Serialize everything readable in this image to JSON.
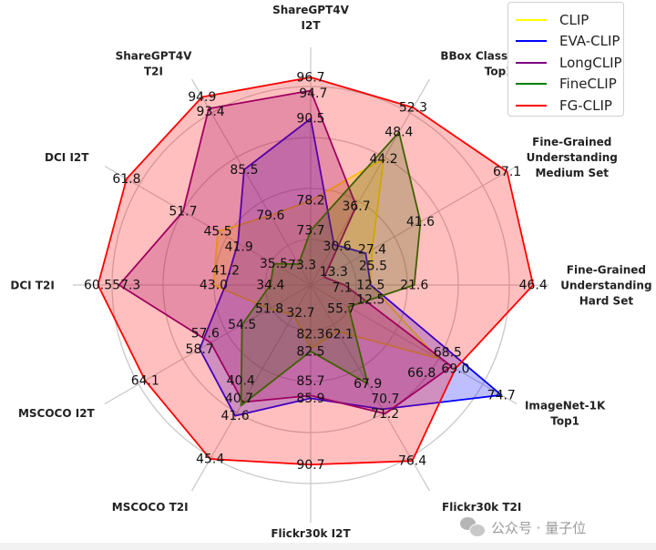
{
  "chart_data": {
    "type": "radar",
    "title": "",
    "axes": [
      {
        "label": [
          "ShareGPT4V",
          "I2T"
        ],
        "range": [
          65.5,
          101.2
        ]
      },
      {
        "label": [
          "BBox Classification",
          "Top1"
        ],
        "range": [
          24.2,
          56.8
        ]
      },
      {
        "label": [
          "Fine-Grained",
          "Understanding",
          "Medium Set"
        ],
        "range": [
          9.3,
          69.9
        ]
      },
      {
        "label": [
          "Fine-Grained",
          "Understanding",
          "Hard Set"
        ],
        "range": [
          0,
          49.6
        ]
      },
      {
        "label": [
          "ImageNet-1K",
          "Top1"
        ],
        "range": [
          51.0,
          76.6
        ]
      },
      {
        "label": [
          "Flickr30k  T2I"
        ],
        "range": [
          57.0,
          79.7
        ]
      },
      {
        "label": [
          "Flickr30k  I2T"
        ],
        "range": [
          77.7,
          94.9
        ]
      },
      {
        "label": [
          "MSCOCO  T2I"
        ],
        "range": [
          30.1,
          48.2
        ]
      },
      {
        "label": [
          "MSCOCO  I2T"
        ],
        "range": [
          47.7,
          68.1
        ]
      },
      {
        "label": [
          "DCI  T2I"
        ],
        "range": [
          28.3,
          64.3
        ]
      },
      {
        "label": [
          "DCI  I2T"
        ],
        "range": [
          28.9,
          65.7
        ]
      },
      {
        "label": [
          "ShareGPT4V",
          "T2I"
        ],
        "range": [
          70.6,
          97.2
        ]
      }
    ],
    "series": [
      {
        "name": "CLIP",
        "color": "#ffff00",
        "fill": "#ffff00",
        "values": [
          78.2,
          44.2,
          27.4,
          12.5,
          66.8,
          62.1,
          82.3,
          32.7,
          51.8,
          43.0,
          45.5,
          79.6
        ]
      },
      {
        "name": "EVA-CLIP",
        "color": "#0000ff",
        "fill": "#0000ff",
        "values": [
          90.5,
          30.6,
          25.5,
          12.5,
          74.7,
          70.7,
          85.9,
          41.6,
          58.7,
          41.2,
          41.9,
          85.5
        ]
      },
      {
        "name": "LongCLIP",
        "color": "#800080",
        "fill": "#800080",
        "values": [
          94.7,
          36.7,
          13.3,
          7.1,
          68.5,
          71.2,
          85.7,
          40.4,
          57.6,
          57.3,
          51.7,
          93.4
        ]
      },
      {
        "name": "FineCLIP",
        "color": "#008000",
        "fill": "#008000",
        "values": [
          73.7,
          48.4,
          41.6,
          21.6,
          55.7,
          67.9,
          82.5,
          40.7,
          54.5,
          34.4,
          35.5,
          73.3
        ]
      },
      {
        "name": "FG-CLIP",
        "color": "#ff0000",
        "fill": "#ff0000",
        "values": [
          96.7,
          52.3,
          67.1,
          46.4,
          69.0,
          76.4,
          90.7,
          45.4,
          64.1,
          60.5,
          61.8,
          94.9
        ]
      }
    ],
    "legend_position": "top-right",
    "grid": true
  },
  "watermark": {
    "text": "公众号 · 量子位",
    "icon": "wechat-icon"
  }
}
